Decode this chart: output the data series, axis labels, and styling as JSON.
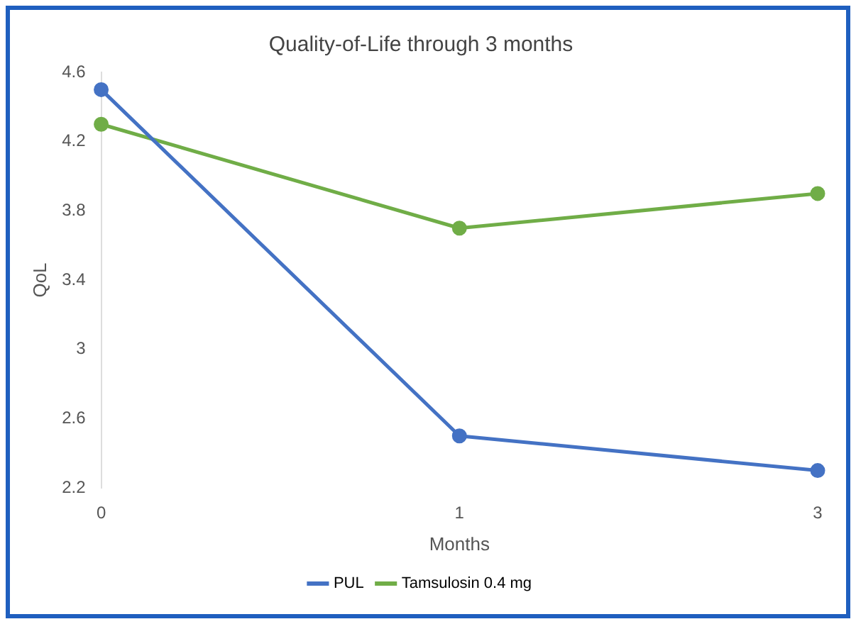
{
  "chart_data": {
    "type": "line",
    "title": "Quality-of-Life through 3 months",
    "xlabel": "Months",
    "ylabel": "QoL",
    "categories": [
      "0",
      "1",
      "3"
    ],
    "series": [
      {
        "name": "PUL",
        "color": "#4472c4",
        "values": [
          4.5,
          2.5,
          2.3
        ]
      },
      {
        "name": "Tamsulosin 0.4 mg",
        "color": "#70ad47",
        "values": [
          4.3,
          3.7,
          3.9
        ]
      }
    ],
    "ylim": [
      2.2,
      4.6
    ],
    "yticks": [
      2.2,
      2.6,
      3,
      3.4,
      3.8,
      4.2,
      4.6
    ],
    "grid": false,
    "legend": "bottom",
    "marker": "circle",
    "line_style": "solid"
  }
}
